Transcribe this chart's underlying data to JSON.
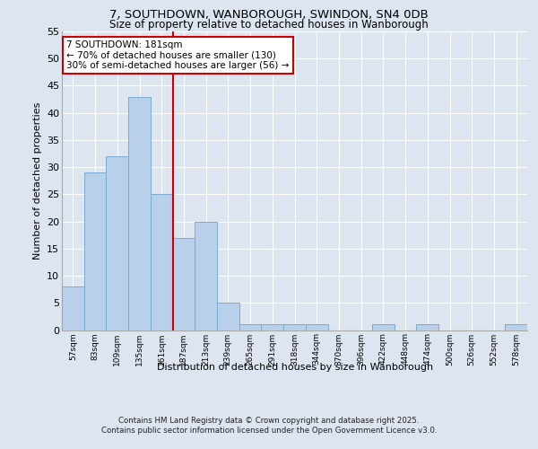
{
  "title_line1": "7, SOUTHDOWN, WANBOROUGH, SWINDON, SN4 0DB",
  "title_line2": "Size of property relative to detached houses in Wanborough",
  "xlabel": "Distribution of detached houses by size in Wanborough",
  "ylabel": "Number of detached properties",
  "categories": [
    "57sqm",
    "83sqm",
    "109sqm",
    "135sqm",
    "161sqm",
    "187sqm",
    "213sqm",
    "239sqm",
    "265sqm",
    "291sqm",
    "318sqm",
    "344sqm",
    "370sqm",
    "396sqm",
    "422sqm",
    "448sqm",
    "474sqm",
    "500sqm",
    "526sqm",
    "552sqm",
    "578sqm"
  ],
  "values": [
    8,
    29,
    32,
    43,
    25,
    17,
    20,
    5,
    1,
    1,
    1,
    1,
    0,
    0,
    1,
    0,
    1,
    0,
    0,
    0,
    1
  ],
  "bar_color": "#b8d0ea",
  "bar_edge_color": "#7aacd0",
  "vline_color": "#cc0000",
  "annotation_box_color": "#cc0000",
  "ylim": [
    0,
    55
  ],
  "yticks": [
    0,
    5,
    10,
    15,
    20,
    25,
    30,
    35,
    40,
    45,
    50,
    55
  ],
  "footer_line1": "Contains HM Land Registry data © Crown copyright and database right 2025.",
  "footer_line2": "Contains public sector information licensed under the Open Government Licence v3.0.",
  "bg_color": "#dde5f0",
  "plot_bg_color": "#dde5f0",
  "grid_color": "#ffffff",
  "annotation_text": "7 SOUTHDOWN: 181sqm\n← 70% of detached houses are smaller (130)\n30% of semi-detached houses are larger (56) →"
}
